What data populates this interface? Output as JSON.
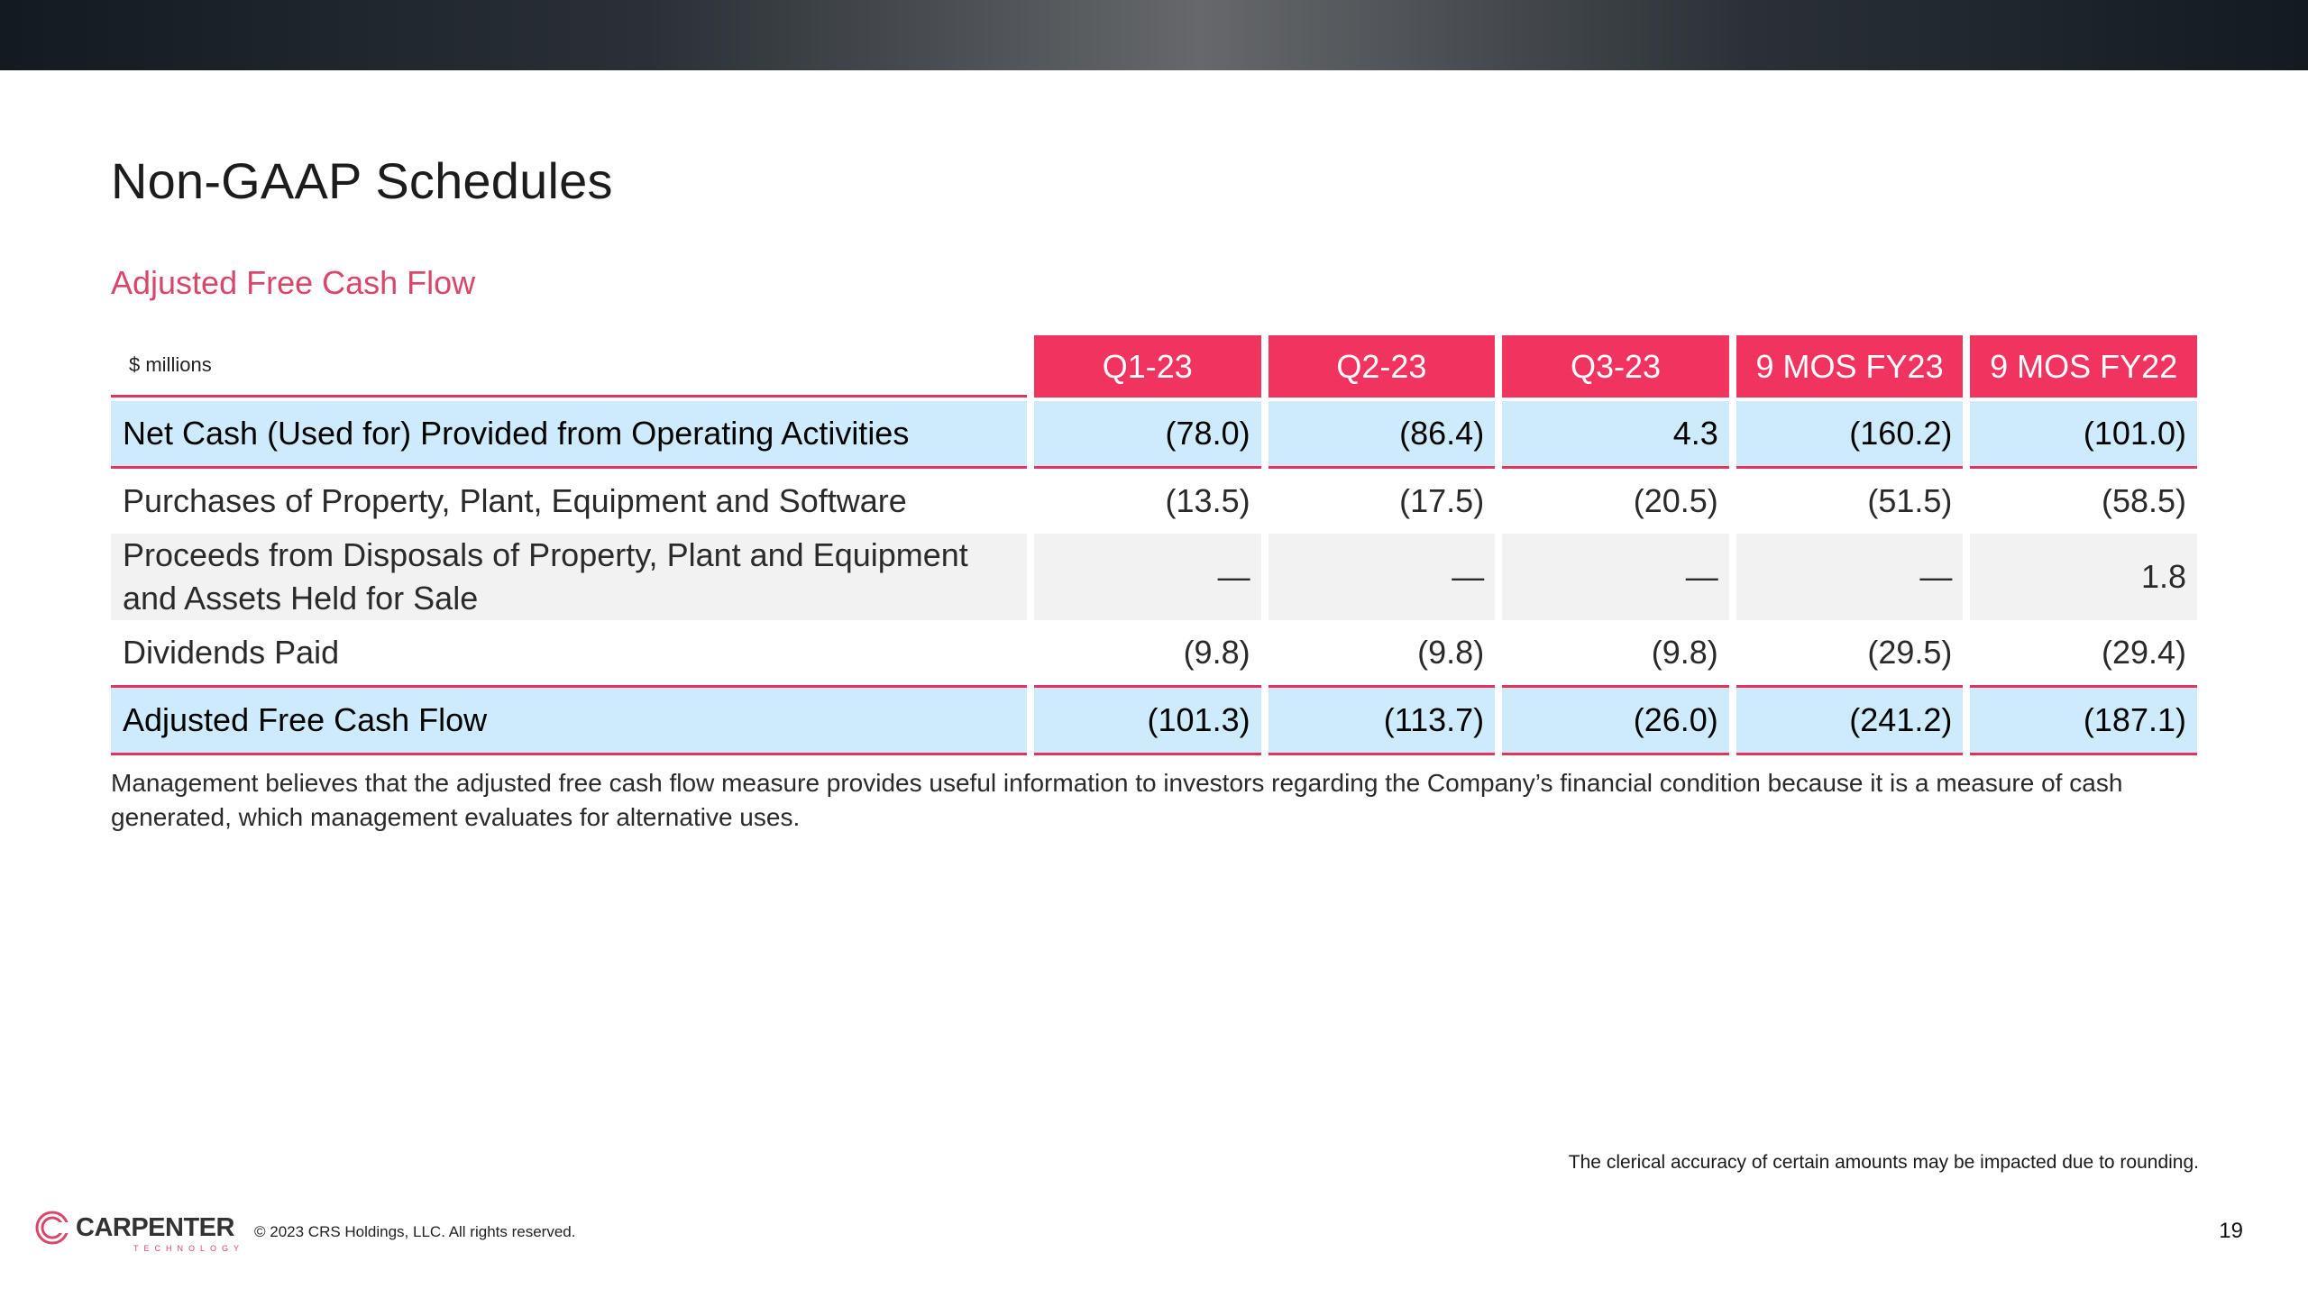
{
  "page": {
    "title": "Non-GAAP Schedules",
    "section_title": "Adjusted Free Cash Flow",
    "units": "$ millions",
    "columns": [
      "Q1-23",
      "Q2-23",
      "Q3-23",
      "9 MOS FY23",
      "9 MOS FY22"
    ],
    "rows": [
      {
        "label": "Net Cash (Used for) Provided from Operating Activities",
        "values": [
          "(78.0)",
          "(86.4)",
          "4.3",
          "(160.2)",
          "(101.0)"
        ]
      },
      {
        "label": "Purchases of Property, Plant, Equipment and Software",
        "values": [
          "(13.5)",
          "(17.5)",
          "(20.5)",
          "(51.5)",
          "(58.5)"
        ]
      },
      {
        "label_line1": "Proceeds from Disposals of Property, Plant and Equipment",
        "label_line2": "and Assets Held for Sale",
        "values": [
          "—",
          "—",
          "—",
          "—",
          "1.8"
        ]
      },
      {
        "label": "Dividends Paid",
        "values": [
          "(9.8)",
          "(9.8)",
          "(9.8)",
          "(29.5)",
          "(29.4)"
        ]
      },
      {
        "label": "Adjusted Free Cash Flow",
        "values": [
          "(101.3)",
          "(113.7)",
          "(26.0)",
          "(241.2)",
          "(187.1)"
        ]
      }
    ],
    "note": "Management believes that the adjusted free cash flow measure provides useful information to investors regarding the Company’s financial condition because it is a measure of cash generated, which management evaluates for alternative uses.",
    "rounding_note": "The clerical accuracy of certain amounts may be impacted due to rounding."
  },
  "footer": {
    "logo_text": "CARPENTER",
    "logo_subtext": "TECHNOLOGY",
    "copyright": "© 2023 CRS Holdings, LLC. All rights reserved.",
    "page_number": "19"
  },
  "colors": {
    "accent": "#f1335f",
    "highlight_row": "#cdebfb",
    "shaded_row": "#f2f2f2",
    "section_title": "#d9466a"
  }
}
